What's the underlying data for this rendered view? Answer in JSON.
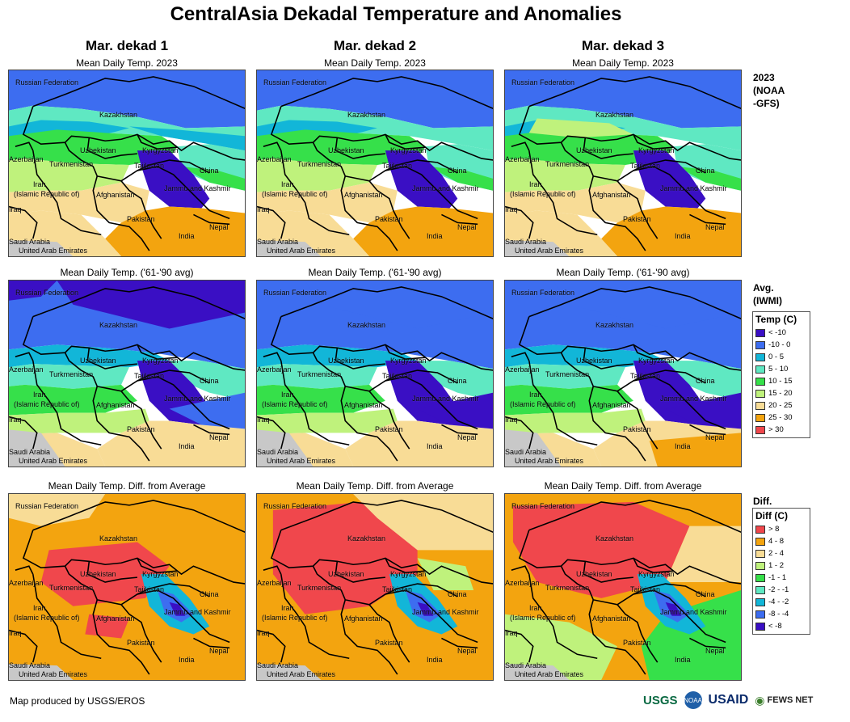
{
  "title": "CentralAsia Dekadal Temperature and Anomalies",
  "columns": [
    "Mar. dekad 1",
    "Mar. dekad 2",
    "Mar. dekad 3"
  ],
  "row_titles": {
    "current": "Mean Daily Temp. 2023",
    "average": "Mean Daily Temp. ('61-'90 avg)",
    "difference": "Mean Daily Temp. Diff. from Average"
  },
  "row_labels": {
    "current": [
      "2023",
      "(NOAA",
      "-GFS)"
    ],
    "average": [
      "Avg.",
      "(IWMI)"
    ],
    "difference": [
      "Diff."
    ]
  },
  "place_labels": {
    "russia": "Russian Federation",
    "kazakhstan": "Kazakhstan",
    "uzbekistan": "Uzbekistan",
    "kyrgyzstan": "Kyrgyzstan",
    "azerbaijan": "Azerbaijan",
    "turkmenistan": "Turkmenistan",
    "tajikistan": "Tajikistan",
    "china": "China",
    "iran": "Iran",
    "iran_sub": "(Islamic Republic of)",
    "afghanistan": "Afghanistan",
    "jammu": "Jammu and Kashmir",
    "iraq": "Iraq",
    "pakistan": "Pakistan",
    "nepal": "Nepal",
    "india": "India",
    "saudi": "Saudi Arabia",
    "uae": "United Arab Emirates"
  },
  "temp_legend": {
    "title": "Temp (C)",
    "items": [
      {
        "label": "< -10",
        "color": "#3a0fc4"
      },
      {
        "label": "-10 - 0",
        "color": "#3d6df0"
      },
      {
        "label": "0 - 5",
        "color": "#12b6d8"
      },
      {
        "label": "5 - 10",
        "color": "#5fe8c2"
      },
      {
        "label": "10 - 15",
        "color": "#36e04a"
      },
      {
        "label": "15 - 20",
        "color": "#bff27c"
      },
      {
        "label": "20 - 25",
        "color": "#f8dc96"
      },
      {
        "label": "25 - 30",
        "color": "#f3a40f"
      },
      {
        "label": "> 30",
        "color": "#f0474c"
      }
    ]
  },
  "diff_legend": {
    "title": "Diff (C)",
    "items": [
      {
        "label": "> 8",
        "color": "#f0474c"
      },
      {
        "label": "4 - 8",
        "color": "#f3a40f"
      },
      {
        "label": "2 - 4",
        "color": "#f8dc96"
      },
      {
        "label": "1 - 2",
        "color": "#bff27c"
      },
      {
        "label": "-1 - 1",
        "color": "#36e04a"
      },
      {
        "label": "-2 - -1",
        "color": "#5fe8c2"
      },
      {
        "label": "-4 - -2",
        "color": "#12b6d8"
      },
      {
        "label": "-8 - -4",
        "color": "#3d6df0"
      },
      {
        "label": "< -8",
        "color": "#3a0fc4"
      }
    ]
  },
  "footer": "Map produced by USGS/EROS",
  "logos": {
    "usgs": "USGS",
    "noaa": "NOAA",
    "usaid": "USAID",
    "fews": "FEWS NET"
  }
}
